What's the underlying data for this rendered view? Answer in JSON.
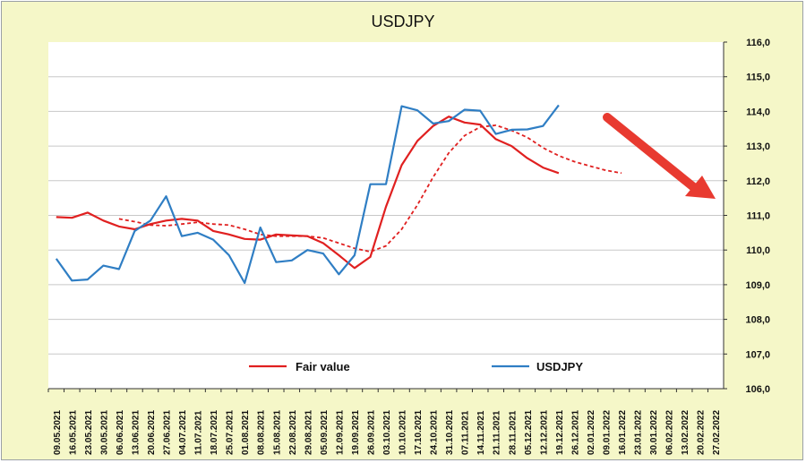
{
  "chart_data": {
    "type": "line",
    "title": "USDJPY",
    "ylim": [
      106,
      116
    ],
    "y_ticks": [
      "106,0",
      "107,0",
      "108,0",
      "109,0",
      "110,0",
      "111,0",
      "112,0",
      "113,0",
      "114,0",
      "115,0",
      "116,0"
    ],
    "x": [
      "09.05.2021",
      "16.05.2021",
      "23.05.2021",
      "30.05.2021",
      "06.06.2021",
      "13.06.2021",
      "20.06.2021",
      "27.06.2021",
      "04.07.2021",
      "11.07.2021",
      "18.07.2021",
      "25.07.2021",
      "01.08.2021",
      "08.08.2021",
      "15.08.2021",
      "22.08.2021",
      "29.08.2021",
      "05.09.2021",
      "12.09.2021",
      "19.09.2021",
      "26.09.2021",
      "03.10.2021",
      "10.10.2021",
      "17.10.2021",
      "24.10.2021",
      "31.10.2021",
      "07.11.2021",
      "14.11.2021",
      "21.11.2021",
      "28.11.2021",
      "05.12.2021",
      "12.12.2021",
      "19.12.2021",
      "26.12.2021",
      "02.01.2022",
      "09.01.2022",
      "16.01.2022",
      "23.01.2022",
      "30.01.2022",
      "06.02.2022",
      "13.02.2022",
      "20.02.2022",
      "27.02.2022"
    ],
    "series": [
      {
        "name": "Fair value",
        "color": "#e02020",
        "style": "solid",
        "values": [
          110.95,
          110.93,
          111.08,
          110.85,
          110.68,
          110.6,
          110.75,
          110.85,
          110.9,
          110.85,
          110.55,
          110.45,
          110.32,
          110.3,
          110.45,
          110.42,
          110.4,
          110.2,
          109.85,
          109.48,
          109.8,
          111.25,
          112.45,
          113.15,
          113.58,
          113.85,
          113.68,
          113.62,
          113.2,
          113.0,
          112.65,
          112.38,
          112.22,
          null,
          null,
          null,
          null,
          null,
          null,
          null,
          null,
          null,
          null
        ]
      },
      {
        "name": "",
        "color": "#e02020",
        "style": "dashed",
        "values": [
          null,
          null,
          null,
          null,
          110.9,
          110.82,
          110.72,
          110.7,
          110.75,
          110.8,
          110.75,
          110.72,
          110.6,
          110.45,
          110.4,
          110.4,
          110.4,
          110.35,
          110.2,
          110.05,
          109.95,
          110.12,
          110.6,
          111.3,
          112.1,
          112.8,
          113.3,
          113.55,
          113.6,
          113.45,
          113.25,
          112.95,
          112.72,
          112.55,
          112.42,
          112.3,
          112.22,
          null,
          null,
          null,
          null,
          null,
          null
        ]
      },
      {
        "name": "USDJPY",
        "color": "#2f7ec4",
        "style": "solid",
        "values": [
          109.75,
          109.12,
          109.15,
          109.55,
          109.45,
          110.55,
          110.85,
          111.55,
          110.4,
          110.5,
          110.3,
          109.85,
          109.05,
          110.65,
          109.65,
          109.7,
          110.0,
          109.9,
          109.3,
          109.85,
          111.9,
          111.9,
          114.15,
          114.03,
          113.65,
          113.72,
          114.05,
          114.02,
          113.35,
          113.47,
          113.48,
          113.58,
          114.18,
          null,
          null,
          null,
          null,
          null,
          null,
          null,
          null,
          null,
          null
        ]
      }
    ],
    "legend": [
      {
        "label": "Fair value",
        "color": "#e02020"
      },
      {
        "label": "USDJPY",
        "color": "#2f7ec4"
      }
    ],
    "legend_position": "bottom",
    "grid": true,
    "annotation": "red-arrow-down-right"
  }
}
